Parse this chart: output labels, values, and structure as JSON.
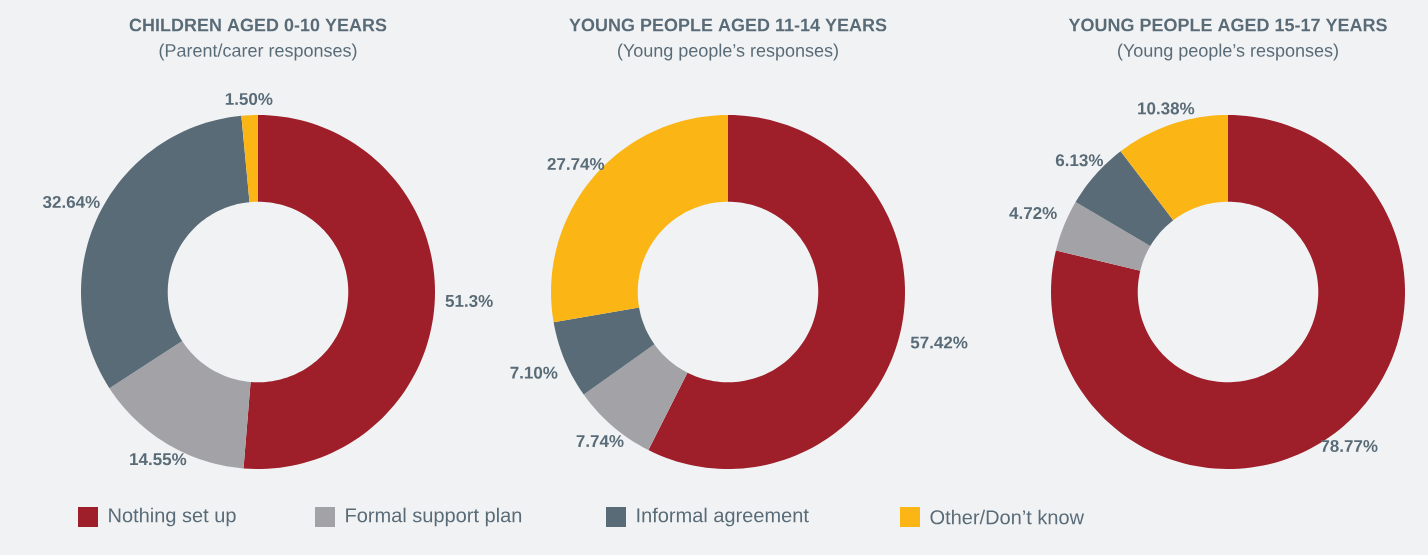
{
  "chart_data": [
    {
      "type": "donut",
      "title": "CHILDREN AGED 0-10 YEARS",
      "subtitle": "(Parent/carer responses)",
      "categories": [
        "Nothing set up",
        "Formal support plan",
        "Informal agreement",
        "Other/Don’t know"
      ],
      "values": [
        51.3,
        14.55,
        32.64,
        1.5
      ],
      "value_labels": [
        "51.3%",
        "14.55%",
        "32.64%",
        "1.50%"
      ],
      "colors": [
        "#9e1f2a",
        "#a3a2a6",
        "#596b77",
        "#fbb515"
      ],
      "legend": "bottom"
    },
    {
      "type": "donut",
      "title": "YOUNG PEOPLE AGED 11-14 YEARS",
      "subtitle": "(Young people’s responses)",
      "categories": [
        null,
        null,
        null,
        null
      ],
      "values": [
        57.42,
        7.74,
        7.1,
        27.74
      ],
      "value_labels": [
        "57.42%",
        "7.74%",
        "7.10%",
        "27.74%"
      ],
      "colors": [
        "#9e1f2a",
        "#a3a2a6",
        "#596b77",
        "#fbb515"
      ]
    },
    {
      "type": "donut",
      "title": "YOUNG PEOPLE AGED 15-17 YEARS",
      "subtitle": "(Young people’s responses)",
      "categories": [
        null,
        null,
        null,
        null
      ],
      "values": [
        78.77,
        4.72,
        6.13,
        10.38
      ],
      "value_labels": [
        "78.77%",
        "4.72%",
        "6.13%",
        "10.38%"
      ],
      "colors": [
        "#9e1f2a",
        "#a3a2a6",
        "#596b77",
        "#fbb515"
      ]
    }
  ]
}
